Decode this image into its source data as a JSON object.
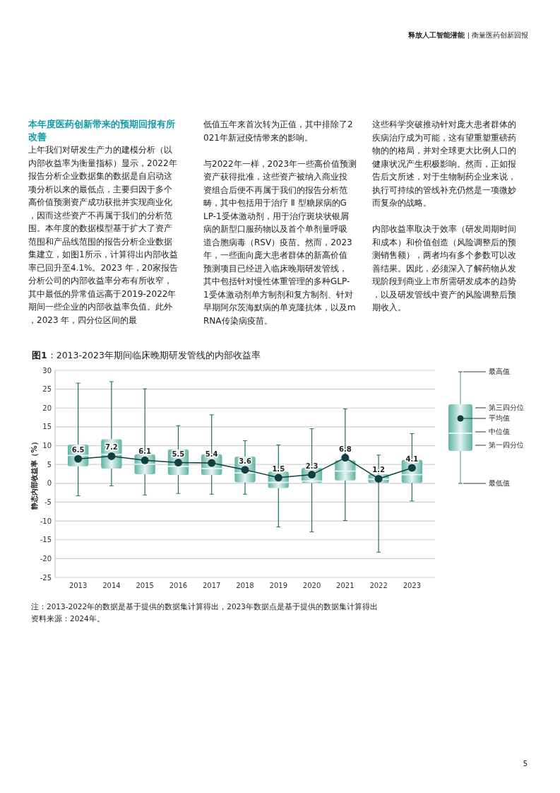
{
  "chart_data": {
    "type": "box",
    "title": "图1：2013-2023年期间临床晚期研发管线的内部收益率",
    "ylabel": "静态内部收益率（%）",
    "categories": [
      "2013",
      "2014",
      "2015",
      "2016",
      "2017",
      "2018",
      "2019",
      "2020",
      "2021",
      "2022",
      "2023"
    ],
    "ylim": [
      -25,
      30
    ],
    "yticks": [
      -25,
      -20,
      -15,
      -10,
      -5,
      0,
      5,
      10,
      15,
      20,
      25,
      30
    ],
    "grid": "y",
    "series": [
      {
        "type": "box",
        "color": "#5cb3a5",
        "boxes": [
          {
            "low": -3.3,
            "q1": 4.5,
            "median": 7.4,
            "q3": 10.3,
            "high": 26.6
          },
          {
            "low": -0.7,
            "q1": 3.9,
            "median": 7.7,
            "q3": 11.7,
            "high": 27.0
          },
          {
            "low": -3.1,
            "q1": 2.4,
            "median": 5.1,
            "q3": 7.7,
            "high": 25.1
          },
          {
            "low": -2.7,
            "q1": 2.2,
            "median": 4.5,
            "q3": 9.0,
            "high": 15.3
          },
          {
            "low": -2.9,
            "q1": 2.2,
            "median": 3.9,
            "q3": 7.7,
            "high": 18.2
          },
          {
            "low": -2.9,
            "q1": 0.25,
            "median": 2.75,
            "q3": 7.1,
            "high": 11.3
          },
          {
            "low": -11.6,
            "q1": -1.25,
            "median": 0.25,
            "q3": 3.1,
            "high": 10.2
          },
          {
            "low": -12.9,
            "q1": 0.1,
            "median": 0.6,
            "q3": 4.1,
            "high": 14.5
          },
          {
            "low": -9.9,
            "q1": 0.75,
            "median": 3.25,
            "q3": 6.1,
            "high": 19.75
          },
          {
            "low": -18.3,
            "q1": 0.1,
            "median": 1.1,
            "q3": 2.4,
            "high": 7.5
          },
          {
            "low": -4.7,
            "q1": 0.1,
            "median": 2.3,
            "q3": 6.25,
            "high": 13.2
          }
        ]
      },
      {
        "type": "line",
        "color": "#0f3f40",
        "marker": "circle",
        "data_labels": true,
        "values": [
          6.5,
          7.2,
          6.1,
          5.5,
          5.4,
          3.6,
          1.5,
          2.3,
          6.8,
          1.2,
          4.1
        ]
      }
    ],
    "annotations": [
      "释放人工智能潜能 | 衡量医药创新回报",
      "本年度医药创新带来的预期回报有所改善",
      "上年我们对研发生产力的建模分析（以内部收益率为衡量指标）显示，2022年报告分析企业数据集的数据是自启动这项分析以来的最低点，主要归因于多个高价值预测资产成功获批并实现商业化，因而这些资产不再属于我们的分析范围。本年度的数据模型基于扩大了资产范围和产品线范围的报告分析企业数据集建立，如图1所示，计算得出内部收益率已回升至4.1%。2023 年，20家报告分析公司的内部收益率分布有所收窄，其中最低的异常值远高于2019-2022年期间一些企业的内部收益率负值。此外，2023 年，四分位区间的最",
      "低值五年来首次转为正值，其中排除了2021年新冠疫情带来的影响。",
      "与2022年一样，2023年一些高价值预测资产获得批准，这些资产被纳入商业投资组合后便不再属于我们的报告分析范畴，其中包括用于治疗 Ⅱ 型糖尿病的GLP-1受体激动剂，用于治疗斑块状银屑病的新型口服药物以及首个单剂量呼吸道合胞病毒（RSV）疫苗。然而，2023年，一些面向庞大患者群体的新高价值预测项目已经进入临床晚期研发管线，其中包括针对慢性体重管理的多种GLP-1受体激动剂单方制剂和复方制剂、针对早期阿尔茨海默病的单克隆抗体，以及mRNA传染病疫苗。",
      "这些科学突破推动针对庞大患者群体的疾病治疗成为可能，这有望重塑重磅药物的的格局，并对全球更大比例人口的健康状况产生积极影响。然而，正如报告后文所述，对于生物制药企业来说，执行可持续的管线补充仍然是一项微妙而复杂的战略。",
      "内部收益率取决于效率（研发周期时间和成本）和价值创造（风险调整后的预测销售额），两者均有多个参数可以改善结果。因此，必须深入了解药物从发现阶段到商业上市所需研发成本的趋势，以及研发管线中资产的风险调整后预期收入。",
      "最高值",
      "第三四分位",
      "平均值",
      "中位值",
      "第一四分位",
      "最低值",
      "注：2013-2022年的数据是基于提供的数据集计算得出，2023年数据点是基于提供的数据集计算得出",
      "资料来源：2024年。",
      "5"
    ]
  }
}
